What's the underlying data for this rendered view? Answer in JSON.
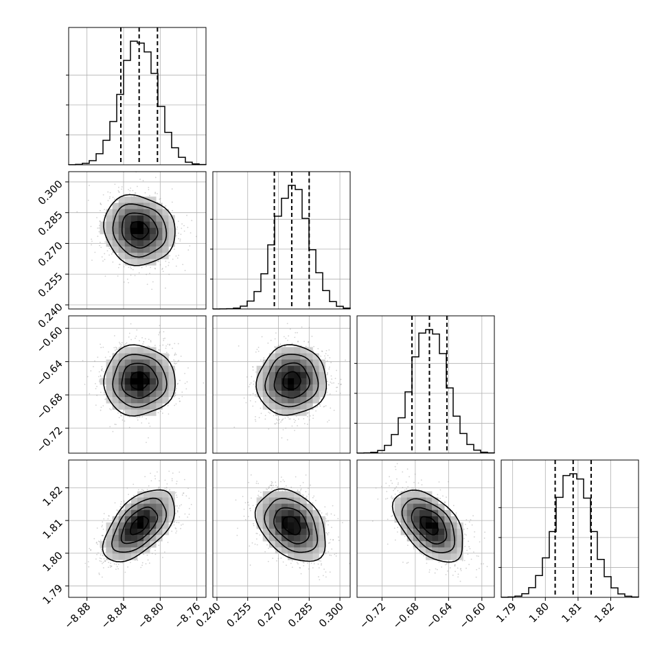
{
  "chart_data": {
    "type": "corner",
    "grid": true,
    "colors": {
      "line": "#000000",
      "grid": "#b0b0b0",
      "points": "#9a9a9a",
      "density_light": "#f3f3f3",
      "density_dark": "#000000"
    },
    "parameters": [
      {
        "range": [
          -8.9,
          -8.75
        ],
        "ticks": [
          -8.88,
          -8.84,
          -8.8,
          -8.76
        ],
        "tick_labels": [
          "−8.88",
          "−8.84",
          "−8.80",
          "−8.76"
        ],
        "mean": -8.823,
        "std": 0.0195,
        "quantiles": [
          -8.843,
          -8.823,
          -8.803
        ]
      },
      {
        "range": [
          0.238,
          0.305
        ],
        "ticks": [
          0.24,
          0.255,
          0.27,
          0.285,
          0.3
        ],
        "tick_labels": [
          "0.240",
          "0.255",
          "0.270",
          "0.285",
          "0.300"
        ],
        "mean": 0.2765,
        "std": 0.0085,
        "quantiles": [
          0.268,
          0.2765,
          0.285
        ]
      },
      {
        "range": [
          -0.75,
          -0.585
        ],
        "ticks": [
          -0.72,
          -0.68,
          -0.64,
          -0.6
        ],
        "tick_labels": [
          "−0.72",
          "−0.68",
          "−0.64",
          "−0.60"
        ],
        "mean": -0.663,
        "std": 0.021,
        "quantiles": [
          -0.684,
          -0.663,
          -0.642
        ]
      },
      {
        "range": [
          1.7865,
          1.8285
        ],
        "ticks": [
          1.79,
          1.8,
          1.81,
          1.82
        ],
        "tick_labels": [
          "1.79",
          "1.80",
          "1.81",
          "1.82"
        ],
        "mean": 1.8085,
        "std": 0.0055,
        "quantiles": [
          1.803,
          1.8085,
          1.814
        ]
      }
    ],
    "correlations": [
      [
        1.0,
        -0.1,
        0.0,
        0.55
      ],
      [
        -0.1,
        1.0,
        0.05,
        -0.35
      ],
      [
        0.0,
        0.05,
        1.0,
        -0.5
      ],
      [
        0.55,
        -0.35,
        -0.5,
        1.0
      ]
    ],
    "contour_levels_sigma": [
      0.5,
      1.0,
      1.5,
      2.0
    ],
    "histogram_bins": 20,
    "scatter_samples": 1400
  }
}
